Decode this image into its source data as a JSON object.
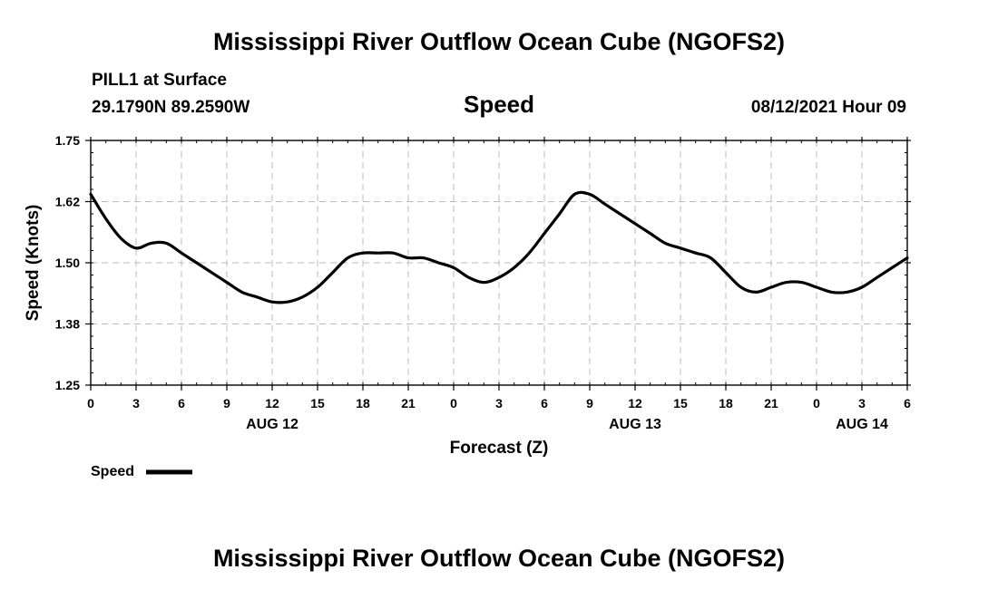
{
  "header": {
    "title": "Mississippi River Outflow Ocean Cube (NGOFS2)",
    "station": "PILL1 at Surface",
    "coords": "29.1790N  89.2590W",
    "variable": "Speed",
    "datetime": "08/12/2021 Hour 09"
  },
  "footer": {
    "title": "Mississippi River Outflow Ocean Cube (NGOFS2)"
  },
  "chart_data": {
    "type": "line",
    "title": "Speed",
    "xlabel": "Forecast (Z)",
    "ylabel": "Speed (Knots)",
    "xlim": [
      0,
      54
    ],
    "ylim": [
      1.25,
      1.75
    ],
    "yticks": [
      "1.75",
      "1.62",
      "1.50",
      "1.38",
      "1.25"
    ],
    "ytick_values": [
      1.75,
      1.625,
      1.5,
      1.375,
      1.25
    ],
    "xtick_labels": [
      "0",
      "3",
      "6",
      "9",
      "12",
      "15",
      "18",
      "21",
      "0",
      "3",
      "6",
      "9",
      "12",
      "15",
      "18",
      "21",
      "0",
      "3",
      "6"
    ],
    "date_labels": [
      {
        "hour": 12,
        "label": "AUG 12"
      },
      {
        "hour": 36,
        "label": "AUG 13"
      },
      {
        "hour": 51,
        "label": "AUG 14"
      }
    ],
    "grid": true,
    "legend": {
      "label": "Speed",
      "placement": "bottom-left"
    },
    "series": [
      {
        "name": "Speed",
        "color": "#000000",
        "x": [
          0,
          1,
          2,
          3,
          4,
          5,
          6,
          7,
          8,
          9,
          10,
          11,
          12,
          13,
          14,
          15,
          16,
          17,
          18,
          19,
          20,
          21,
          22,
          23,
          24,
          25,
          26,
          27,
          28,
          29,
          30,
          31,
          32,
          33,
          34,
          35,
          36,
          37,
          38,
          39,
          40,
          41,
          42,
          43,
          44,
          45,
          46,
          47,
          48,
          49,
          50,
          51,
          52,
          53,
          54
        ],
        "y": [
          1.64,
          1.59,
          1.55,
          1.53,
          1.54,
          1.54,
          1.52,
          1.5,
          1.48,
          1.46,
          1.44,
          1.43,
          1.42,
          1.42,
          1.43,
          1.45,
          1.48,
          1.51,
          1.52,
          1.52,
          1.52,
          1.51,
          1.51,
          1.5,
          1.49,
          1.47,
          1.46,
          1.47,
          1.49,
          1.52,
          1.56,
          1.6,
          1.64,
          1.64,
          1.62,
          1.6,
          1.58,
          1.56,
          1.54,
          1.53,
          1.52,
          1.51,
          1.48,
          1.45,
          1.44,
          1.45,
          1.46,
          1.46,
          1.45,
          1.44,
          1.44,
          1.45,
          1.47,
          1.49,
          1.51
        ]
      }
    ]
  }
}
